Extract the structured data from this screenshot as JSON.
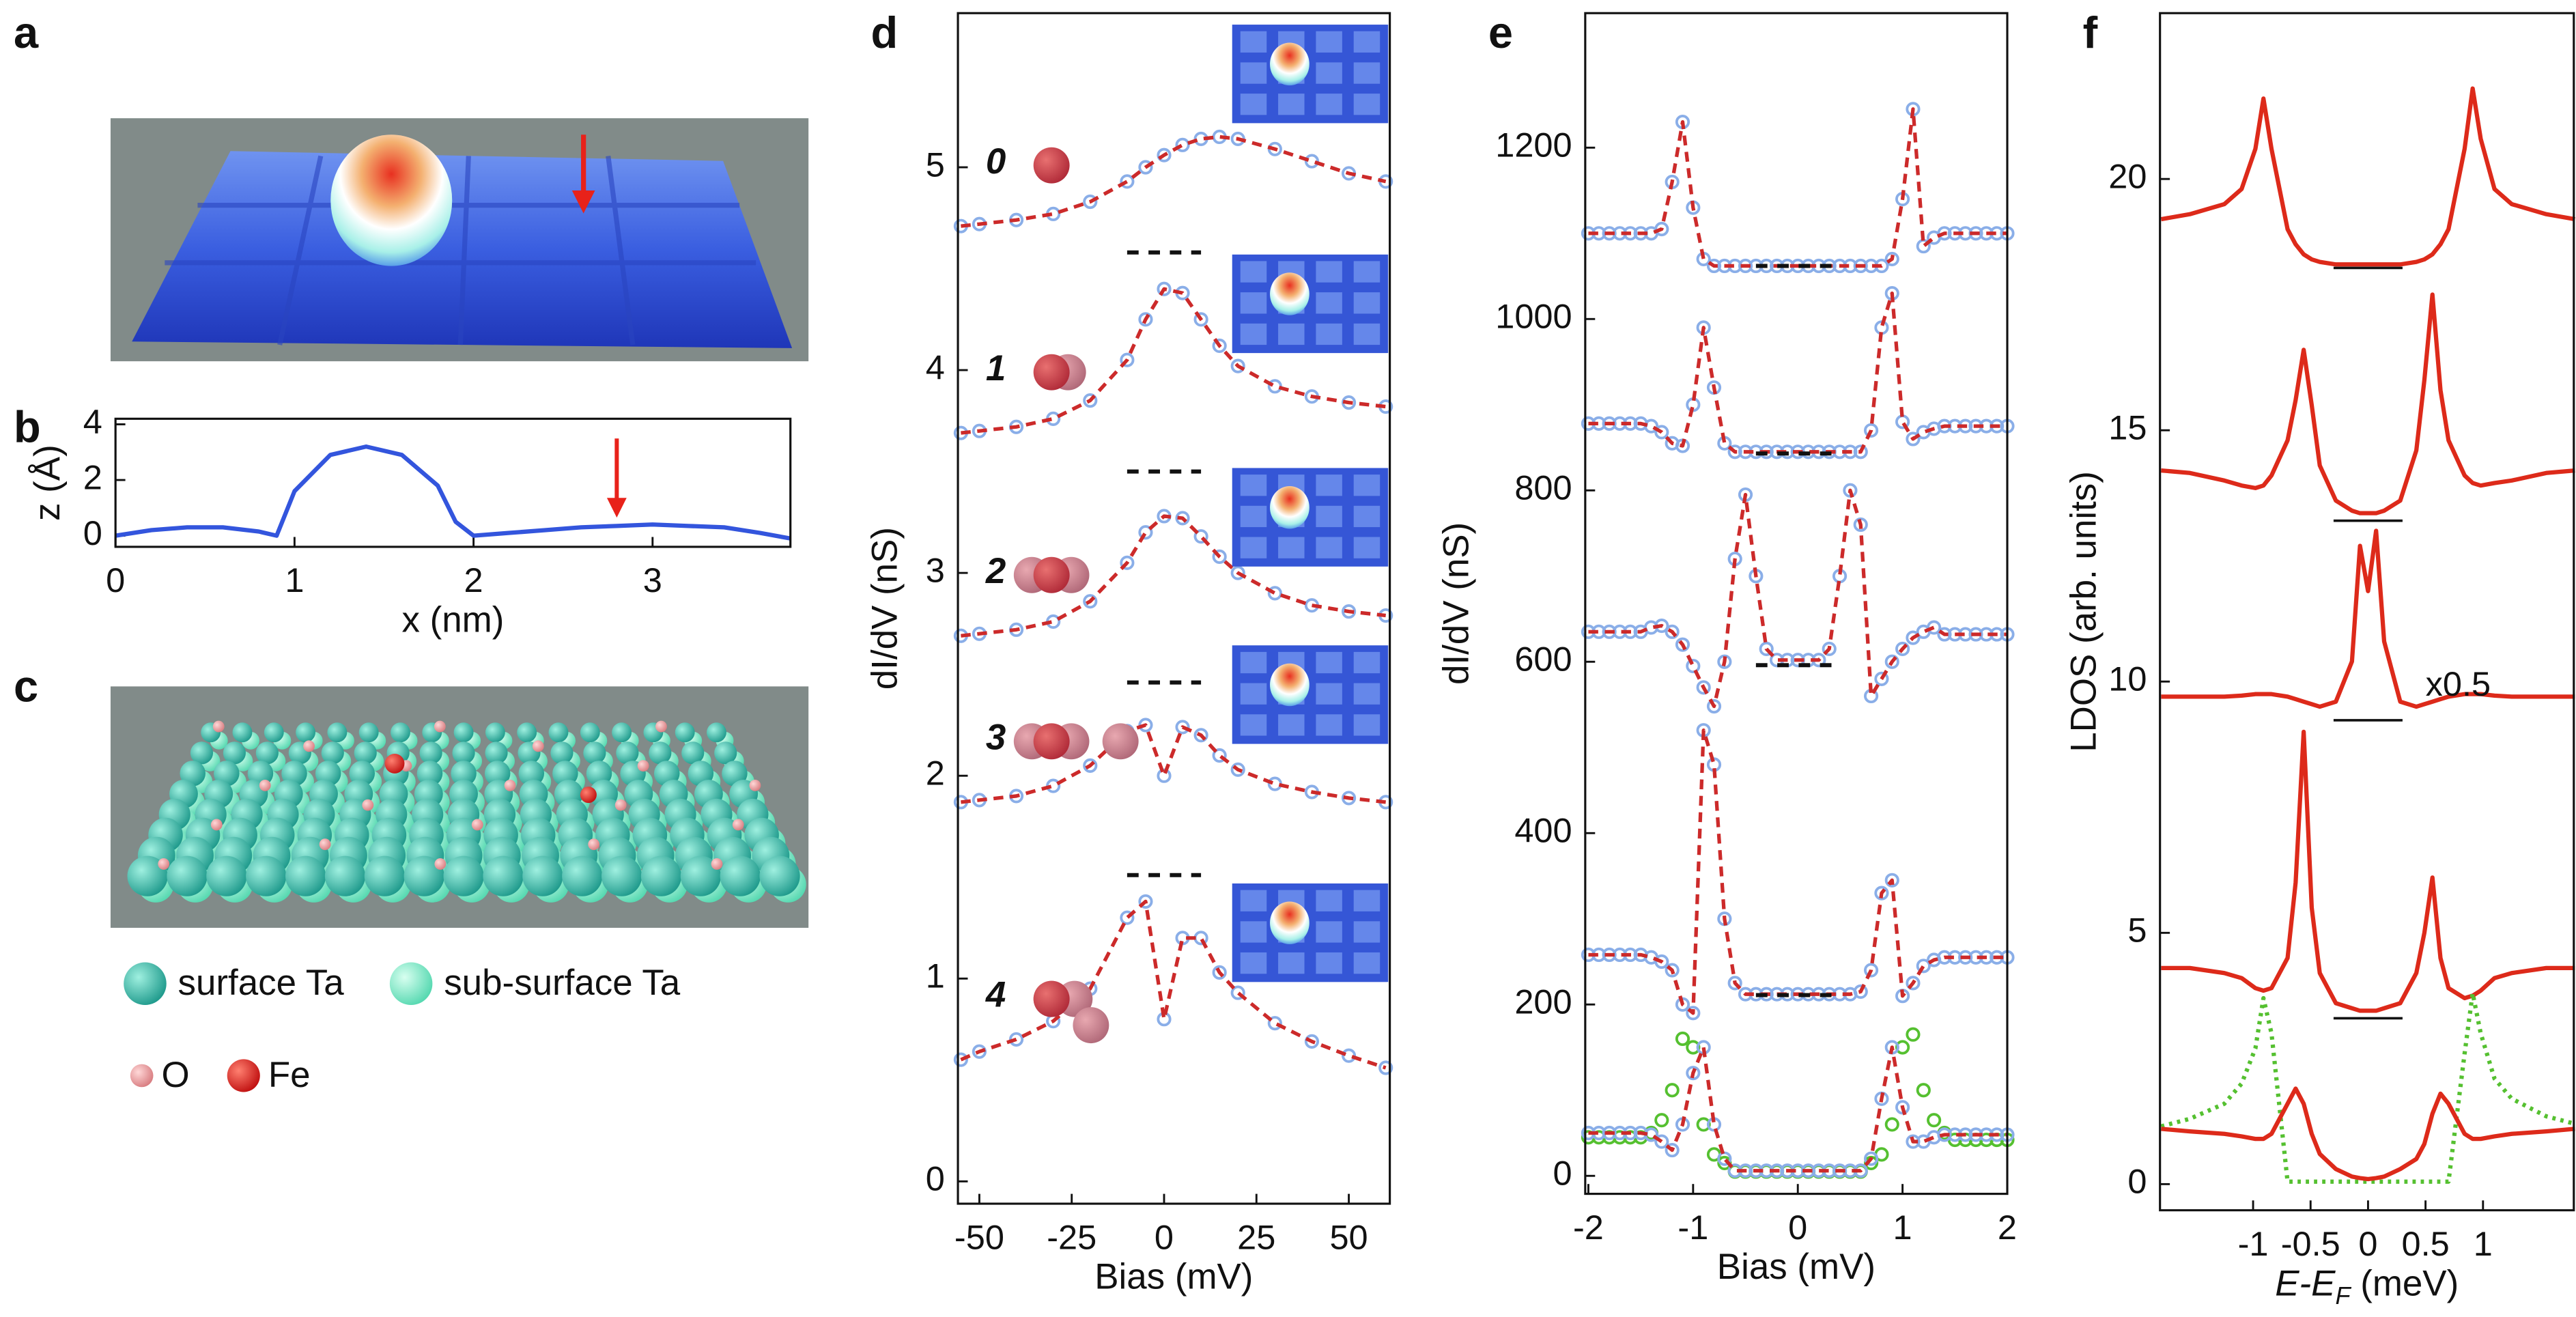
{
  "panel_a": {
    "label": "a"
  },
  "panel_c": {
    "label": "c",
    "legend": [
      "surface Ta",
      "sub-surface Ta",
      "O",
      "Fe"
    ]
  },
  "chart_data": [
    {
      "label": "b",
      "type": "line",
      "xlabel": "x (nm)",
      "ylabel": "z (Å)",
      "x": [
        0,
        0.2,
        0.4,
        0.6,
        0.8,
        0.9,
        1.0,
        1.2,
        1.4,
        1.6,
        1.8,
        1.9,
        2.0,
        2.2,
        2.4,
        2.6,
        2.8,
        3.0,
        3.2,
        3.4,
        3.6,
        3.77
      ],
      "series": [
        {
          "color": "#3355dd",
          "values": [
            0,
            0.2,
            0.3,
            0.3,
            0.15,
            0.0,
            1.6,
            2.9,
            3.2,
            2.9,
            1.8,
            0.5,
            0.0,
            0.1,
            0.2,
            0.3,
            0.35,
            0.4,
            0.35,
            0.3,
            0.1,
            -0.1
          ]
        }
      ],
      "arrow_x": 2.8,
      "arrow_color": "#e8221a",
      "xlim": [
        0,
        3.77
      ],
      "ylim": [
        -0.4,
        4.2
      ],
      "xticks": [
        0,
        1,
        2,
        3
      ],
      "yticks": [
        0,
        2,
        4
      ]
    },
    {
      "label": "d",
      "type": "line",
      "xlabel": "Bias (mV)",
      "ylabel": "dI/dV (nS)",
      "markers": true,
      "fit_color": "#cc2a2a",
      "x": [
        -55,
        -50,
        -40,
        -30,
        -20,
        -10,
        -5,
        0,
        5,
        10,
        15,
        20,
        30,
        40,
        50,
        60
      ],
      "series": [
        {
          "name": "0",
          "color": "#8aaee8",
          "values": [
            4.71,
            4.72,
            4.74,
            4.77,
            4.83,
            4.93,
            5.0,
            5.06,
            5.11,
            5.14,
            5.15,
            5.14,
            5.09,
            5.03,
            4.97,
            4.93
          ]
        },
        {
          "name": "1",
          "color": "#8aaee8",
          "values": [
            3.69,
            3.7,
            3.72,
            3.76,
            3.85,
            4.05,
            4.25,
            4.4,
            4.38,
            4.25,
            4.12,
            4.02,
            3.92,
            3.87,
            3.84,
            3.82
          ]
        },
        {
          "name": "2",
          "color": "#8aaee8",
          "values": [
            2.69,
            2.7,
            2.72,
            2.76,
            2.86,
            3.05,
            3.2,
            3.28,
            3.27,
            3.18,
            3.08,
            3.0,
            2.9,
            2.84,
            2.81,
            2.79
          ]
        },
        {
          "name": "3",
          "color": "#8aaee8",
          "values": [
            1.87,
            1.88,
            1.9,
            1.95,
            2.05,
            2.22,
            2.25,
            2.0,
            2.24,
            2.2,
            2.1,
            2.03,
            1.96,
            1.92,
            1.89,
            1.87
          ]
        },
        {
          "name": "4",
          "color": "#8aaee8",
          "values": [
            0.6,
            0.64,
            0.7,
            0.79,
            0.95,
            1.3,
            1.38,
            0.8,
            1.2,
            1.2,
            1.03,
            0.93,
            0.78,
            0.69,
            0.62,
            0.56
          ]
        }
      ],
      "zero_levels": [
        4.58,
        3.5,
        2.46,
        1.51
      ],
      "zero_level_style": "dashed",
      "xlim": [
        -55.8,
        61.1
      ],
      "ylim": [
        -0.11,
        5.76
      ],
      "xticks": [
        -50,
        -25,
        0,
        25,
        50
      ],
      "yticks": [
        0,
        1,
        2,
        3,
        4,
        5
      ]
    },
    {
      "label": "e",
      "type": "line",
      "xlabel": "Bias (mV)",
      "ylabel": "dI/dV (nS)",
      "markers": true,
      "fit_color": "#cc2a2a",
      "x": [
        -2.0,
        -1.9,
        -1.8,
        -1.7,
        -1.6,
        -1.5,
        -1.4,
        -1.3,
        -1.2,
        -1.1,
        -1.0,
        -0.9,
        -0.8,
        -0.7,
        -0.6,
        -0.5,
        -0.4,
        -0.3,
        -0.2,
        -0.1,
        0,
        0.1,
        0.2,
        0.3,
        0.4,
        0.5,
        0.6,
        0.7,
        0.8,
        0.9,
        1.0,
        1.1,
        1.2,
        1.3,
        1.4,
        1.5,
        1.6,
        1.7,
        1.8,
        1.9,
        2.0
      ],
      "series": [
        {
          "color": "#55c030",
          "fit": false,
          "values": [
            45,
            45,
            45,
            45,
            45,
            45,
            50,
            65,
            100,
            160,
            150,
            60,
            25,
            15,
            5,
            5,
            5,
            5,
            5,
            5,
            5,
            5,
            5,
            5,
            5,
            5,
            5,
            15,
            25,
            60,
            150,
            165,
            100,
            65,
            50,
            42,
            42,
            42,
            42,
            42,
            42
          ]
        },
        {
          "color": "#8aaee8",
          "values": [
            1100,
            1100,
            1100,
            1100,
            1100,
            1100,
            1100,
            1105,
            1160,
            1230,
            1130,
            1070,
            1062,
            1062,
            1062,
            1062,
            1062,
            1062,
            1062,
            1062,
            1062,
            1062,
            1062,
            1062,
            1062,
            1062,
            1062,
            1062,
            1062,
            1070,
            1140,
            1245,
            1085,
            1095,
            1100,
            1100,
            1100,
            1100,
            1100,
            1100,
            1100
          ]
        },
        {
          "color": "#8aaee8",
          "values": [
            878,
            878,
            878,
            878,
            878,
            878,
            875,
            868,
            855,
            852,
            900,
            990,
            920,
            855,
            845,
            845,
            845,
            845,
            845,
            845,
            845,
            845,
            845,
            845,
            845,
            845,
            845,
            870,
            990,
            1030,
            880,
            860,
            868,
            872,
            875,
            875,
            875,
            875,
            875,
            875,
            875
          ]
        },
        {
          "color": "#8aaee8",
          "values": [
            635,
            635,
            635,
            635,
            635,
            635,
            640,
            642,
            635,
            620,
            595,
            570,
            548,
            600,
            720,
            795,
            700,
            615,
            602,
            602,
            602,
            602,
            602,
            615,
            700,
            800,
            760,
            560,
            580,
            600,
            615,
            628,
            635,
            640,
            632,
            632,
            632,
            632,
            632,
            632,
            632
          ]
        },
        {
          "color": "#8aaee8",
          "values": [
            258,
            258,
            258,
            258,
            258,
            258,
            255,
            250,
            240,
            200,
            190,
            520,
            480,
            300,
            225,
            212,
            212,
            212,
            212,
            212,
            212,
            212,
            212,
            212,
            212,
            212,
            215,
            240,
            330,
            345,
            210,
            225,
            245,
            252,
            255,
            255,
            255,
            255,
            255,
            255,
            255
          ]
        },
        {
          "color": "#8aaee8",
          "values": [
            50,
            50,
            50,
            50,
            50,
            50,
            48,
            40,
            30,
            60,
            120,
            150,
            60,
            20,
            6,
            6,
            6,
            6,
            6,
            6,
            6,
            6,
            6,
            6,
            6,
            6,
            6,
            20,
            90,
            150,
            80,
            40,
            40,
            45,
            48,
            48,
            48,
            48,
            48,
            48,
            48
          ]
        }
      ],
      "zero_levels": [
        1062,
        843,
        596,
        211
      ],
      "zero_level_style": "dashed",
      "xlim": [
        -2.03,
        2.0
      ],
      "ylim": [
        -21,
        1357
      ],
      "xticks": [
        -2,
        -1,
        0,
        1,
        2
      ],
      "yticks": [
        0,
        200,
        400,
        600,
        800,
        1000,
        1200
      ]
    },
    {
      "label": "f",
      "type": "line",
      "xlabel": {
        "main": "E-E",
        "sub": "F",
        "unit": " (meV)"
      },
      "ylabel": "LDOS (arb. units)",
      "x": [
        -1.8,
        -1.55,
        -1.25,
        -1.1,
        -0.98,
        -0.91,
        -0.84,
        -0.7,
        -0.63,
        -0.56,
        -0.49,
        -0.42,
        -0.28,
        -0.14,
        -0.07,
        0,
        0.07,
        0.14,
        0.28,
        0.42,
        0.49,
        0.56,
        0.63,
        0.7,
        0.84,
        0.91,
        0.98,
        1.1,
        1.25,
        1.55,
        1.8
      ],
      "series": [
        {
          "color": "#dd2a1a",
          "values": [
            19.2,
            19.3,
            19.5,
            19.8,
            20.6,
            21.6,
            20.6,
            19.0,
            18.7,
            18.5,
            18.4,
            18.35,
            18.3,
            18.3,
            18.3,
            18.3,
            18.3,
            18.3,
            18.3,
            18.35,
            18.4,
            18.5,
            18.7,
            19.0,
            20.6,
            21.8,
            20.8,
            19.8,
            19.5,
            19.3,
            19.2
          ]
        },
        {
          "color": "#dd2a1a",
          "values": [
            14.2,
            14.15,
            14.0,
            13.9,
            13.85,
            13.9,
            14.1,
            14.8,
            15.6,
            16.6,
            15.5,
            14.3,
            13.6,
            13.4,
            13.35,
            13.35,
            13.35,
            13.4,
            13.6,
            14.6,
            16.0,
            17.7,
            15.8,
            14.8,
            14.1,
            13.95,
            13.9,
            13.95,
            14.0,
            14.15,
            14.2
          ]
        },
        {
          "color": "#dd2a1a",
          "values": [
            9.7,
            9.7,
            9.7,
            9.72,
            9.75,
            9.75,
            9.75,
            9.7,
            9.65,
            9.6,
            9.55,
            9.5,
            9.6,
            10.4,
            12.7,
            11.8,
            13.0,
            10.8,
            9.6,
            9.5,
            9.55,
            9.6,
            9.65,
            9.7,
            9.75,
            9.75,
            9.75,
            9.72,
            9.7,
            9.7,
            9.7
          ]
        },
        {
          "color": "#dd2a1a",
          "values": [
            4.3,
            4.3,
            4.2,
            4.1,
            3.9,
            3.85,
            3.9,
            4.5,
            6.0,
            9.0,
            5.5,
            4.2,
            3.6,
            3.5,
            3.45,
            3.45,
            3.45,
            3.5,
            3.6,
            4.2,
            5.0,
            6.1,
            4.5,
            3.9,
            3.7,
            3.75,
            3.85,
            4.1,
            4.2,
            4.3,
            4.3
          ]
        },
        {
          "color": "#55c030",
          "dash": "dotted",
          "values": [
            1.15,
            1.3,
            1.6,
            2.0,
            2.7,
            3.7,
            3.0,
            0.05,
            0.05,
            0.05,
            0.05,
            0.05,
            0.05,
            0.05,
            0.05,
            0.05,
            0.05,
            0.05,
            0.05,
            0.05,
            0.05,
            0.05,
            0.05,
            0.05,
            2.6,
            3.8,
            3.0,
            2.1,
            1.7,
            1.35,
            1.2
          ]
        },
        {
          "color": "#dd2a1a",
          "values": [
            1.1,
            1.05,
            1.0,
            0.95,
            0.9,
            0.9,
            1.0,
            1.6,
            1.9,
            1.6,
            1.0,
            0.6,
            0.3,
            0.15,
            0.12,
            0.1,
            0.12,
            0.15,
            0.3,
            0.5,
            0.8,
            1.4,
            1.8,
            1.6,
            1.0,
            0.9,
            0.9,
            0.95,
            1.0,
            1.05,
            1.1
          ]
        }
      ],
      "annotation": "x0.5",
      "zero_levels": [
        18.23,
        13.2,
        9.23,
        3.3
      ],
      "zero_level_style": "solid",
      "xlim": [
        -1.81,
        1.79
      ],
      "ylim": [
        -0.52,
        23.3
      ],
      "xticks": [
        -1,
        -0.5,
        0,
        0.5,
        1
      ],
      "yticks": [
        0,
        5,
        10,
        15,
        20
      ]
    }
  ]
}
